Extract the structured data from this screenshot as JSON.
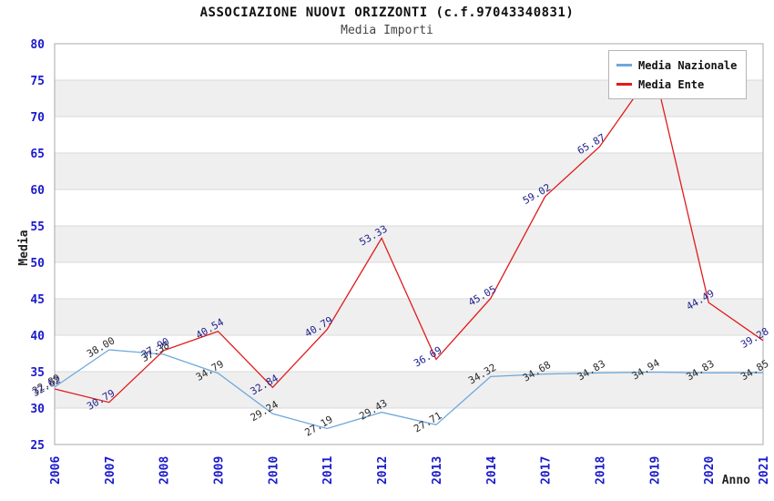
{
  "chart": {
    "title": "ASSOCIAZIONE NUOVI ORIZZONTI (c.f.97043340831)",
    "subtitle": "Media Importi",
    "y_axis_title": "Media",
    "x_axis_title": "Anno",
    "colors": {
      "axis_tick_blue": "#1a1acc",
      "stripe_gray": "#efefef",
      "grid_gray": "#dadada",
      "frame_gray": "#a8a8a8",
      "axis_title_black": "#222222"
    }
  },
  "legend": {
    "items": [
      {
        "label": "Media Nazionale",
        "color": "#6fa8dc"
      },
      {
        "label": "Media Ente",
        "color": "#e11b1b"
      }
    ]
  },
  "chart_data": {
    "type": "line",
    "x_labels": [
      "2006",
      "2007",
      "2008",
      "2009",
      "2010",
      "2011",
      "2012",
      "2013",
      "2014",
      "2017",
      "2018",
      "2019",
      "2020",
      "2021"
    ],
    "ylim": [
      25,
      80
    ],
    "ytick_step": 5,
    "grid": true,
    "legend_position": "top-right",
    "xlabel": "Anno",
    "ylabel": "Media",
    "series": [
      {
        "name": "Media Nazionale",
        "color": "#6fa8dc",
        "label_color": "#2b2b2b",
        "values": [
          32.89,
          38.0,
          37.38,
          34.79,
          29.24,
          27.19,
          29.43,
          27.71,
          34.32,
          34.68,
          34.83,
          34.94,
          34.83,
          34.85
        ],
        "point_labels": [
          "32.89",
          "38.00",
          "37.38",
          "34.79",
          "29.24",
          "27.19",
          "29.43",
          "27.71",
          "34.32",
          "34.68",
          "34.83",
          "34.94",
          "34.83",
          "34.85"
        ]
      },
      {
        "name": "Media Ente",
        "color": "#e11b1b",
        "label_color": "#1f1f8f",
        "values": [
          32.62,
          30.79,
          37.9,
          40.54,
          32.84,
          40.79,
          53.33,
          36.69,
          45.05,
          59.02,
          65.87,
          76.5,
          44.49,
          39.28
        ],
        "point_labels": [
          "32.62",
          "30.79",
          "37.90",
          "40.54",
          "32.84",
          "40.79",
          "53.33",
          "36.69",
          "45.05",
          "59.02",
          "65.87",
          "",
          "44.49",
          "39.28"
        ]
      }
    ]
  }
}
